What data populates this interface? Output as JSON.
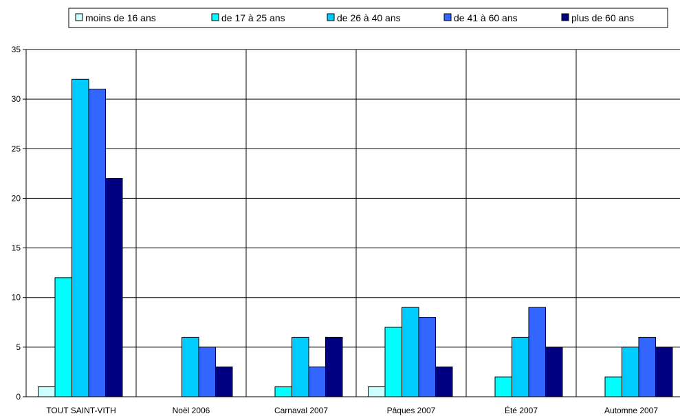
{
  "chart_data": {
    "type": "bar",
    "title": "",
    "xlabel": "",
    "ylabel": "",
    "ylim": [
      0,
      35
    ],
    "yticks": [
      0,
      5,
      10,
      15,
      20,
      25,
      30,
      35
    ],
    "grid": true,
    "legend_position": "top",
    "categories": [
      "TOUT SAINT-VITH",
      "Noël 2006",
      "Carnaval 2007",
      "Pâques 2007",
      "Été 2007",
      "Automne 2007"
    ],
    "series": [
      {
        "name": "moins de 16 ans",
        "color": "#ccffff",
        "values": [
          1,
          0,
          0,
          1,
          0,
          0
        ]
      },
      {
        "name": "de 17 à 25 ans",
        "color": "#00ffff",
        "values": [
          12,
          0,
          1,
          7,
          2,
          2
        ]
      },
      {
        "name": "de 26 à 40 ans",
        "color": "#00ccff",
        "values": [
          32,
          6,
          6,
          9,
          6,
          5
        ]
      },
      {
        "name": "de 41 à 60 ans",
        "color": "#3366ff",
        "values": [
          31,
          5,
          3,
          8,
          9,
          6
        ]
      },
      {
        "name": "plus de 60 ans",
        "color": "#000080",
        "values": [
          22,
          3,
          6,
          3,
          5,
          5
        ]
      }
    ]
  }
}
